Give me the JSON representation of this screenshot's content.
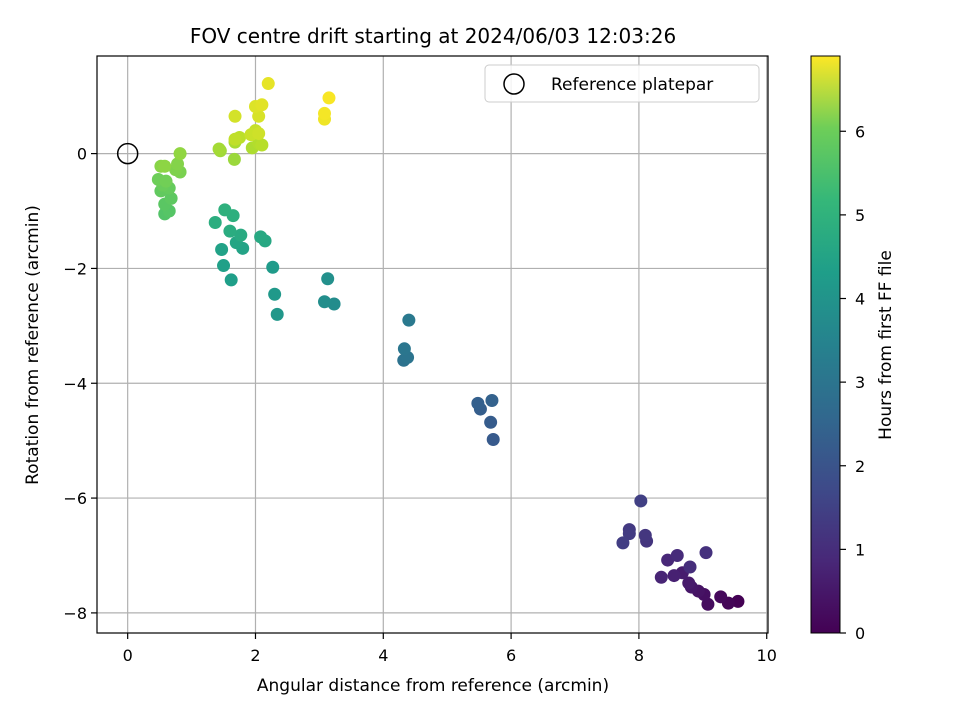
{
  "chart_data": {
    "type": "scatter",
    "title": "FOV centre drift starting at 2024/06/03 12:03:26",
    "xlabel": "Angular distance from reference (arcmin)",
    "ylabel": "Rotation from reference (arcmin)",
    "xlim": [
      -0.48,
      10.02
    ],
    "ylim": [
      -8.35,
      1.7
    ],
    "xticks": [
      0,
      2,
      4,
      6,
      8,
      10
    ],
    "yticks": [
      -8,
      -6,
      -4,
      -2,
      0
    ],
    "grid": true,
    "legend": {
      "position": "top-right",
      "entries": [
        "Reference platepar"
      ]
    },
    "reference_point": {
      "x": 0,
      "y": 0,
      "label": "Reference platepar"
    },
    "colorbar": {
      "label": "Hours from first FF file",
      "colormap": "viridis",
      "range": [
        0,
        6.9
      ],
      "ticks": [
        0,
        1,
        2,
        3,
        4,
        5,
        6
      ]
    },
    "points": [
      {
        "x": 9.55,
        "y": -7.8,
        "t": 0.0
      },
      {
        "x": 9.4,
        "y": -7.83,
        "t": 0.07
      },
      {
        "x": 9.28,
        "y": -7.72,
        "t": 0.14
      },
      {
        "x": 9.08,
        "y": -7.85,
        "t": 0.21
      },
      {
        "x": 9.02,
        "y": -7.68,
        "t": 0.28
      },
      {
        "x": 8.93,
        "y": -7.62,
        "t": 0.35
      },
      {
        "x": 8.82,
        "y": -7.55,
        "t": 0.42
      },
      {
        "x": 8.78,
        "y": -7.48,
        "t": 0.49
      },
      {
        "x": 8.68,
        "y": -7.3,
        "t": 0.56
      },
      {
        "x": 8.55,
        "y": -7.35,
        "t": 0.63
      },
      {
        "x": 8.35,
        "y": -7.38,
        "t": 0.7
      },
      {
        "x": 8.45,
        "y": -7.08,
        "t": 0.77
      },
      {
        "x": 8.6,
        "y": -7.0,
        "t": 0.84
      },
      {
        "x": 8.8,
        "y": -7.2,
        "t": 0.9
      },
      {
        "x": 9.05,
        "y": -6.95,
        "t": 0.98
      },
      {
        "x": 8.12,
        "y": -6.75,
        "t": 1.05
      },
      {
        "x": 8.1,
        "y": -6.65,
        "t": 1.1
      },
      {
        "x": 7.85,
        "y": -6.55,
        "t": 1.15
      },
      {
        "x": 7.85,
        "y": -6.62,
        "t": 1.2
      },
      {
        "x": 7.75,
        "y": -6.78,
        "t": 1.25
      },
      {
        "x": 8.03,
        "y": -6.05,
        "t": 1.3
      },
      {
        "x": 5.72,
        "y": -4.98,
        "t": 1.95
      },
      {
        "x": 5.68,
        "y": -4.68,
        "t": 2.0
      },
      {
        "x": 5.52,
        "y": -4.45,
        "t": 2.05
      },
      {
        "x": 5.48,
        "y": -4.35,
        "t": 2.1
      },
      {
        "x": 5.7,
        "y": -4.3,
        "t": 2.15
      },
      {
        "x": 4.32,
        "y": -3.6,
        "t": 2.6
      },
      {
        "x": 4.38,
        "y": -3.55,
        "t": 2.65
      },
      {
        "x": 4.33,
        "y": -3.4,
        "t": 2.7
      },
      {
        "x": 4.4,
        "y": -2.9,
        "t": 2.8
      },
      {
        "x": 3.23,
        "y": -2.62,
        "t": 3.35
      },
      {
        "x": 3.08,
        "y": -2.58,
        "t": 3.4
      },
      {
        "x": 3.13,
        "y": -2.18,
        "t": 3.45
      },
      {
        "x": 2.34,
        "y": -2.8,
        "t": 3.65
      },
      {
        "x": 2.3,
        "y": -2.45,
        "t": 3.7
      },
      {
        "x": 2.27,
        "y": -1.98,
        "t": 3.75
      },
      {
        "x": 1.62,
        "y": -2.2,
        "t": 3.85
      },
      {
        "x": 1.5,
        "y": -1.95,
        "t": 3.9
      },
      {
        "x": 1.47,
        "y": -1.67,
        "t": 3.95
      },
      {
        "x": 1.8,
        "y": -1.65,
        "t": 4.0
      },
      {
        "x": 1.7,
        "y": -1.55,
        "t": 4.05
      },
      {
        "x": 2.15,
        "y": -1.52,
        "t": 4.1
      },
      {
        "x": 2.08,
        "y": -1.45,
        "t": 4.15
      },
      {
        "x": 1.77,
        "y": -1.42,
        "t": 4.2
      },
      {
        "x": 1.6,
        "y": -1.35,
        "t": 4.25
      },
      {
        "x": 1.37,
        "y": -1.2,
        "t": 4.3
      },
      {
        "x": 1.65,
        "y": -1.08,
        "t": 4.35
      },
      {
        "x": 1.52,
        "y": -0.98,
        "t": 4.4
      },
      {
        "x": 0.58,
        "y": -1.05,
        "t": 5.0
      },
      {
        "x": 0.65,
        "y": -1.0,
        "t": 5.05
      },
      {
        "x": 0.58,
        "y": -0.88,
        "t": 5.1
      },
      {
        "x": 0.68,
        "y": -0.78,
        "t": 5.15
      },
      {
        "x": 0.52,
        "y": -0.65,
        "t": 5.2
      },
      {
        "x": 0.65,
        "y": -0.6,
        "t": 5.25
      },
      {
        "x": 0.55,
        "y": -0.55,
        "t": 5.3
      },
      {
        "x": 0.48,
        "y": -0.45,
        "t": 5.35
      },
      {
        "x": 0.6,
        "y": -0.48,
        "t": 5.4
      },
      {
        "x": 0.82,
        "y": -0.32,
        "t": 5.5
      },
      {
        "x": 0.75,
        "y": -0.28,
        "t": 5.55
      },
      {
        "x": 0.78,
        "y": -0.18,
        "t": 5.6
      },
      {
        "x": 0.52,
        "y": -0.22,
        "t": 5.65
      },
      {
        "x": 0.58,
        "y": -0.22,
        "t": 5.7
      },
      {
        "x": 0.82,
        "y": 0.0,
        "t": 5.75
      },
      {
        "x": 1.67,
        "y": -0.1,
        "t": 5.85
      },
      {
        "x": 1.45,
        "y": 0.05,
        "t": 5.9
      },
      {
        "x": 1.43,
        "y": 0.08,
        "t": 5.95
      },
      {
        "x": 1.68,
        "y": 0.2,
        "t": 6.0
      },
      {
        "x": 1.95,
        "y": 0.1,
        "t": 6.05
      },
      {
        "x": 2.05,
        "y": 0.18,
        "t": 6.1
      },
      {
        "x": 2.1,
        "y": 0.15,
        "t": 6.15
      },
      {
        "x": 1.75,
        "y": 0.28,
        "t": 6.2
      },
      {
        "x": 1.68,
        "y": 0.25,
        "t": 6.25
      },
      {
        "x": 2.0,
        "y": 0.4,
        "t": 6.3
      },
      {
        "x": 1.93,
        "y": 0.33,
        "t": 6.35
      },
      {
        "x": 2.05,
        "y": 0.35,
        "t": 6.4
      },
      {
        "x": 1.68,
        "y": 0.65,
        "t": 6.45
      },
      {
        "x": 2.05,
        "y": 0.65,
        "t": 6.5
      },
      {
        "x": 2.0,
        "y": 0.82,
        "t": 6.55
      },
      {
        "x": 2.1,
        "y": 0.85,
        "t": 6.6
      },
      {
        "x": 2.2,
        "y": 1.22,
        "t": 6.65
      },
      {
        "x": 3.08,
        "y": 0.6,
        "t": 6.75
      },
      {
        "x": 3.08,
        "y": 0.7,
        "t": 6.8
      },
      {
        "x": 3.15,
        "y": 0.97,
        "t": 6.85
      }
    ]
  }
}
